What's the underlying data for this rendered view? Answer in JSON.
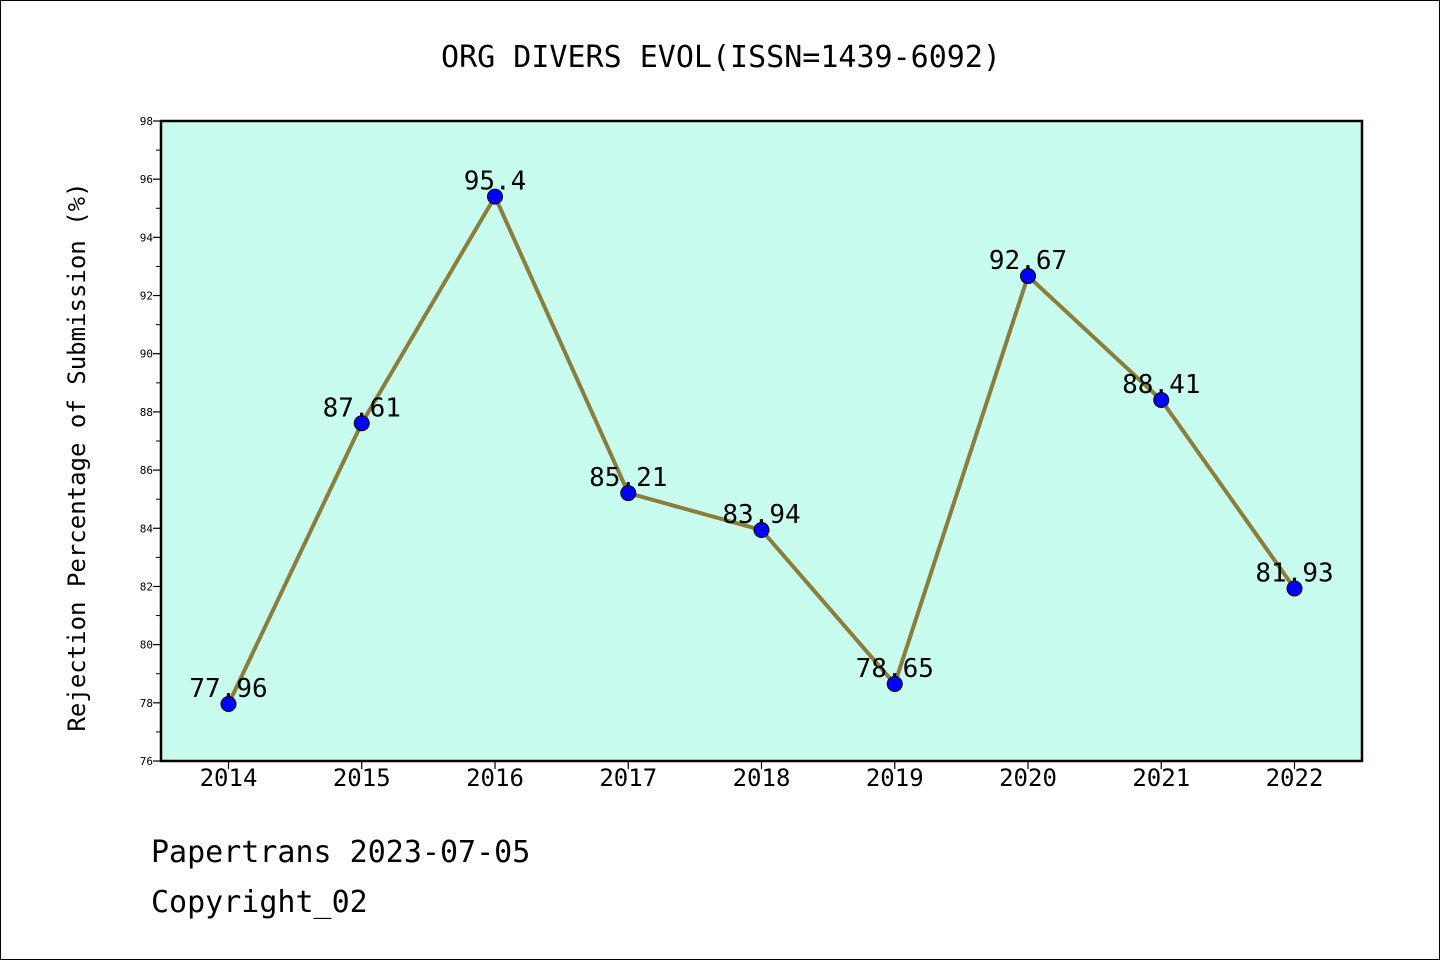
{
  "chart_data": {
    "type": "line",
    "title": "ORG DIVERS EVOL(ISSN=1439-6092)",
    "xlabel": "",
    "ylabel": "Rejection Percentage of Submission (%)",
    "categories": [
      "2014",
      "2015",
      "2016",
      "2017",
      "2018",
      "2019",
      "2020",
      "2021",
      "2022"
    ],
    "values": [
      77.96,
      87.61,
      95.4,
      85.21,
      83.94,
      78.65,
      92.67,
      88.41,
      81.93
    ],
    "data_labels": [
      "77.96",
      "87.61",
      "95.4",
      "85.21",
      "83.94",
      "78.65",
      "92.67",
      "88.41",
      "81.93"
    ],
    "ylim": [
      76,
      98
    ],
    "yticks": [
      76,
      78,
      80,
      82,
      84,
      86,
      88,
      90,
      92,
      94,
      96,
      98
    ],
    "grid": false,
    "colors": {
      "plot_background": "#c8fcee",
      "line": "#8b7d3a",
      "marker": "#0000ff"
    }
  },
  "footer": {
    "line1": "Papertrans 2023-07-05",
    "line2": "Copyright_02"
  }
}
